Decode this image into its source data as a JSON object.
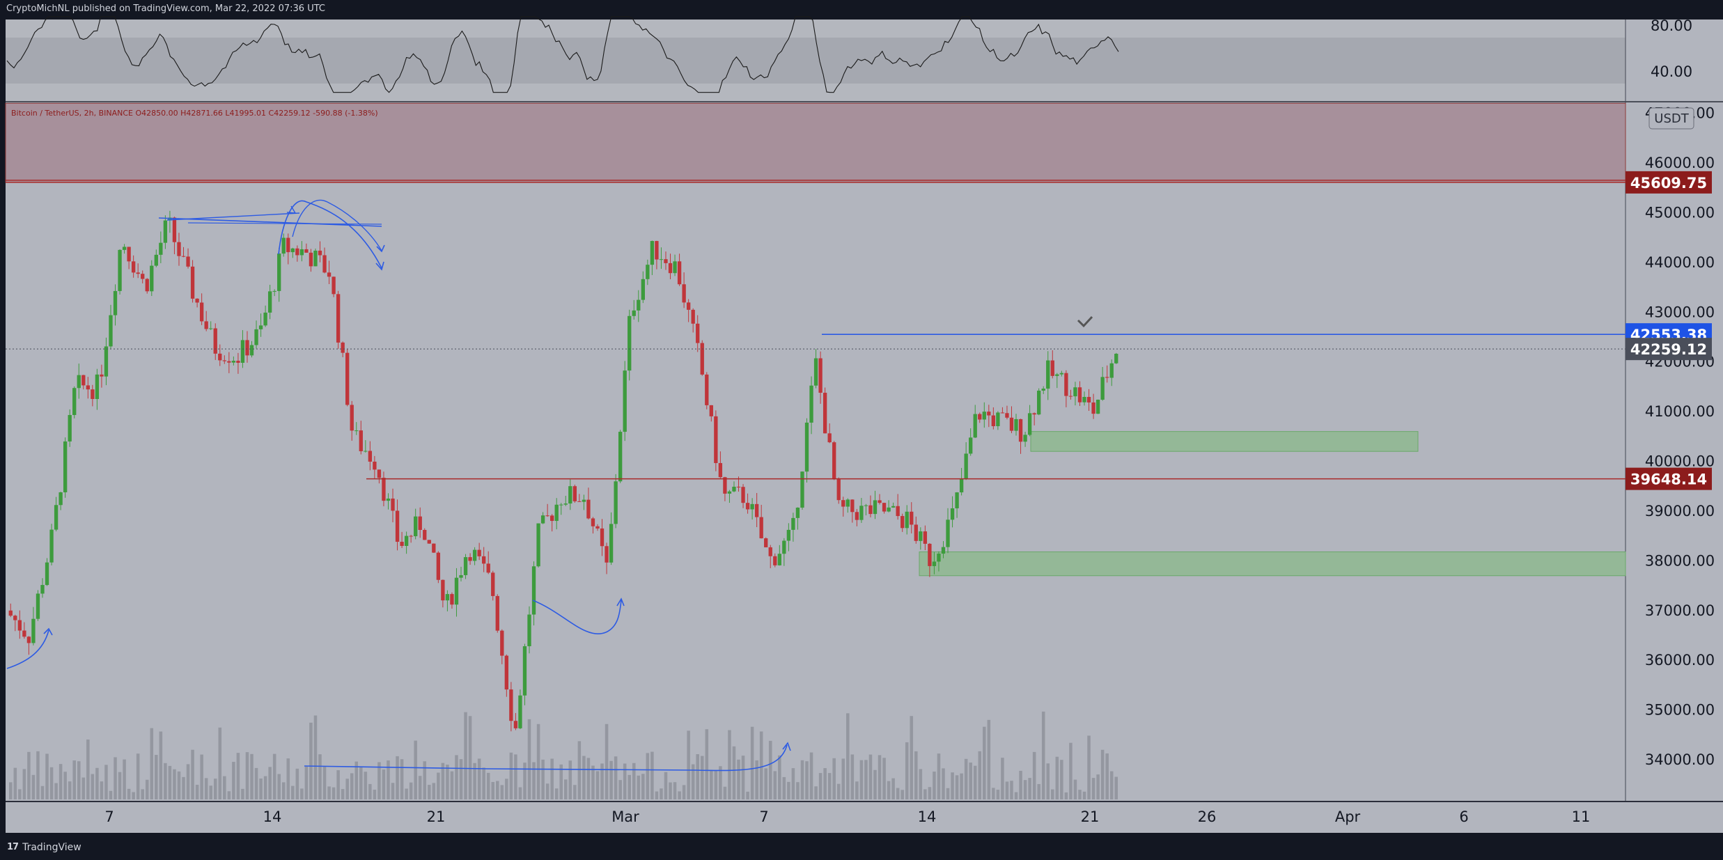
{
  "header": {
    "published_text": "CryptoMichNL published on TradingView.com, Mar 22, 2022 07:36 UTC"
  },
  "footer": {
    "brand_label": "TradingView",
    "logo_glyph": "17"
  },
  "symbol_info": {
    "text": "Bitcoin / TetherUS, 2h, BINANCE  O42850.00  H42871.66  L41995.01  C42259.12  -590.88 (-1.38%)"
  },
  "currency_label": "USDT",
  "rsi": {
    "labels": [
      "80.00",
      "40.00"
    ],
    "upper": 80,
    "lower": 40
  },
  "price_axis": {
    "labels": [
      "46000.00",
      "45000.00",
      "44000.00",
      "43000.00",
      "42000.00",
      "41000.00",
      "40000.00",
      "39000.00",
      "38000.00",
      "37000.00",
      "36000.00",
      "35000.00",
      "34000.00"
    ],
    "partial_top_label": "47000.00"
  },
  "price_tags": [
    {
      "value": "45609.75",
      "price": 45609.75,
      "color": "#8c1c1c"
    },
    {
      "value": "42553.38",
      "price": 42553.38,
      "color": "#1e53e5"
    },
    {
      "value": "42259.12",
      "price": 42259.12,
      "color": "#4a4e5a"
    },
    {
      "value": "39648.14",
      "price": 39648.14,
      "color": "#8c1c1c"
    }
  ],
  "time_axis": {
    "labels": [
      "7",
      "14",
      "21",
      "Mar",
      "7",
      "14",
      "21",
      "26",
      "Apr",
      "6",
      "11"
    ]
  },
  "zones": [
    {
      "name": "supply-zone",
      "from": 45609.75,
      "to": 47200,
      "color": "#a58a95"
    },
    {
      "name": "demand-zone-upper",
      "from": 40200,
      "to": 40600,
      "color": "#8ab98a"
    },
    {
      "name": "demand-zone-lower",
      "from": 37700,
      "to": 38180,
      "color": "#8ab98a"
    }
  ],
  "chart_data": {
    "type": "candlestick",
    "symbol": "Bitcoin / TetherUS",
    "interval": "2h",
    "exchange": "BINANCE",
    "last_bar": {
      "open": 42850.0,
      "high": 42871.66,
      "low": 41995.01,
      "close": 42259.12,
      "change": -590.88,
      "change_pct": -1.38
    },
    "key_prices": [
      {
        "price": 41800,
        "label": ""
      },
      {
        "price": 40300,
        "label": ""
      }
    ],
    "horizontal_lines": [
      45609.75,
      42553.38,
      42259.12,
      39648.14
    ],
    "swing_points": [
      {
        "date": "Feb 1",
        "price": 37000
      },
      {
        "date": "Feb 3",
        "price": 36500
      },
      {
        "date": "Feb 4",
        "price": 38500
      },
      {
        "date": "Feb 5",
        "price": 41500
      },
      {
        "date": "Feb 6",
        "price": 41500
      },
      {
        "date": "Feb 8",
        "price": 44500
      },
      {
        "date": "Feb 9",
        "price": 43500
      },
      {
        "date": "Feb 10",
        "price": 44800
      },
      {
        "date": "Feb 11",
        "price": 43500
      },
      {
        "date": "Feb 12",
        "price": 42300
      },
      {
        "date": "Feb 13",
        "price": 42100
      },
      {
        "date": "Feb 14",
        "price": 42600
      },
      {
        "date": "Feb 15",
        "price": 44300
      },
      {
        "date": "Feb 16",
        "price": 44200
      },
      {
        "date": "Feb 17",
        "price": 43800
      },
      {
        "date": "Feb 18",
        "price": 40500
      },
      {
        "date": "Feb 19",
        "price": 40000
      },
      {
        "date": "Feb 20",
        "price": 38300
      },
      {
        "date": "Feb 21",
        "price": 38800
      },
      {
        "date": "Feb 22",
        "price": 37000
      },
      {
        "date": "Feb 23",
        "price": 38300
      },
      {
        "date": "Feb 24",
        "price": 37500
      },
      {
        "date": "Feb 24 night",
        "price": 34500
      },
      {
        "date": "Feb 25",
        "price": 38500
      },
      {
        "date": "Feb 26",
        "price": 39300
      },
      {
        "date": "Feb 27",
        "price": 39300
      },
      {
        "date": "Feb 28",
        "price": 37800
      },
      {
        "date": "Mar 1",
        "price": 43000
      },
      {
        "date": "Mar 2",
        "price": 44300
      },
      {
        "date": "Mar 3",
        "price": 43900
      },
      {
        "date": "Mar 4",
        "price": 42000
      },
      {
        "date": "Mar 5",
        "price": 39300
      },
      {
        "date": "Mar 6",
        "price": 39300
      },
      {
        "date": "Mar 7",
        "price": 38000
      },
      {
        "date": "Mar 8",
        "price": 38500
      },
      {
        "date": "Mar 9",
        "price": 42000
      },
      {
        "date": "Mar 10",
        "price": 39000
      },
      {
        "date": "Mar 11",
        "price": 39000
      },
      {
        "date": "Mar 12",
        "price": 39000
      },
      {
        "date": "Mar 13",
        "price": 38800
      },
      {
        "date": "Mar 14",
        "price": 38000
      },
      {
        "date": "Mar 15",
        "price": 39000
      },
      {
        "date": "Mar 16",
        "price": 41000
      },
      {
        "date": "Mar 17",
        "price": 40800
      },
      {
        "date": "Mar 18",
        "price": 40600
      },
      {
        "date": "Mar 19",
        "price": 41800
      },
      {
        "date": "Mar 20",
        "price": 41500
      },
      {
        "date": "Mar 21",
        "price": 41000
      },
      {
        "date": "Mar 22",
        "price": 42259
      }
    ]
  },
  "colors": {
    "chart_bg": "#b2b5be",
    "up_candle": "#3d9b3d",
    "down_candle": "#c0353a",
    "drawing_blue": "#2d5be3",
    "axis_text": "#131722",
    "red_line": "#a92a2a"
  }
}
